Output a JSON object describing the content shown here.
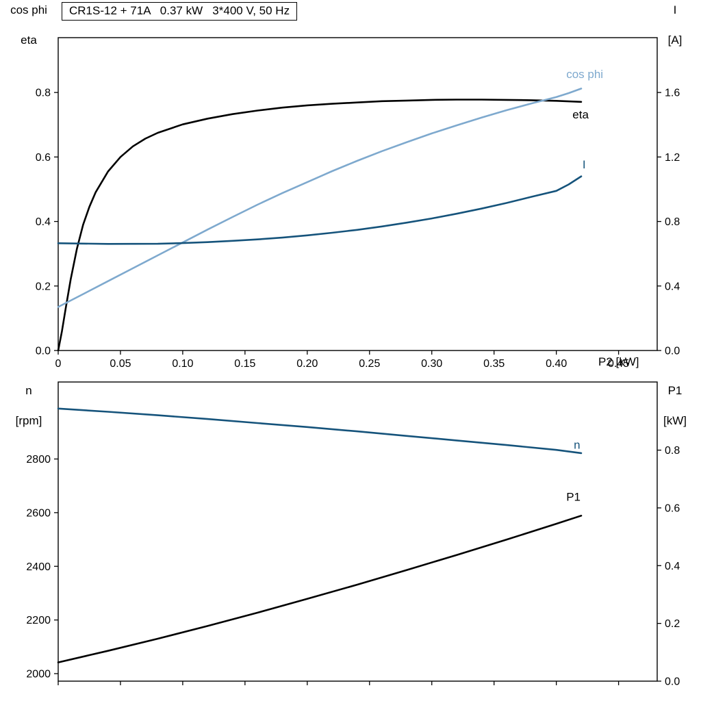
{
  "title_box": {
    "text": "CR1S-12 + 71A   0.37 kW   3*400 V, 50 Hz"
  },
  "colors": {
    "curve_black": "#000000",
    "curve_light_blue": "#7ea9ce",
    "curve_dark_blue": "#15537b",
    "axis": "#000000"
  },
  "chart_data": [
    {
      "name": "motor-curves-top",
      "type": "line",
      "x_label": "P2 [kW]",
      "x_range": [
        0,
        0.481
      ],
      "x_ticks": [
        {
          "v": 0,
          "label": "0"
        },
        {
          "v": 0.05,
          "label": "0.05"
        },
        {
          "v": 0.1,
          "label": "0.10"
        },
        {
          "v": 0.15,
          "label": "0.15"
        },
        {
          "v": 0.2,
          "label": "0.20"
        },
        {
          "v": 0.25,
          "label": "0.25"
        },
        {
          "v": 0.3,
          "label": "0.30"
        },
        {
          "v": 0.35,
          "label": "0.35"
        },
        {
          "v": 0.4,
          "label": "0.40"
        },
        {
          "v": 0.45,
          "label": "0.45"
        }
      ],
      "left_axis": {
        "title_lines": [
          "cos phi",
          "eta"
        ],
        "range": [
          0,
          0.97
        ],
        "ticks": [
          {
            "v": 0,
            "label": "0.0"
          },
          {
            "v": 0.2,
            "label": "0.2"
          },
          {
            "v": 0.4,
            "label": "0.4"
          },
          {
            "v": 0.6,
            "label": "0.6"
          },
          {
            "v": 0.8,
            "label": "0.8"
          }
        ]
      },
      "right_axis": {
        "title_lines": [
          "I",
          "[A]"
        ],
        "range": [
          0,
          1.94
        ],
        "ticks": [
          {
            "v": 0,
            "label": "0.0"
          },
          {
            "v": 0.4,
            "label": "0.4"
          },
          {
            "v": 0.8,
            "label": "0.8"
          },
          {
            "v": 1.2,
            "label": "1.2"
          },
          {
            "v": 1.6,
            "label": "1.6"
          }
        ]
      },
      "series": [
        {
          "name": "eta",
          "label": "eta",
          "axis": "left",
          "color": "#000000",
          "label_at": [
            0.413,
            0.72
          ],
          "points": [
            [
              0,
              0
            ],
            [
              0.003,
              0.06
            ],
            [
              0.006,
              0.13
            ],
            [
              0.01,
              0.22
            ],
            [
              0.015,
              0.315
            ],
            [
              0.02,
              0.39
            ],
            [
              0.025,
              0.445
            ],
            [
              0.03,
              0.49
            ],
            [
              0.04,
              0.555
            ],
            [
              0.05,
              0.6
            ],
            [
              0.06,
              0.633
            ],
            [
              0.07,
              0.657
            ],
            [
              0.08,
              0.675
            ],
            [
              0.1,
              0.701
            ],
            [
              0.12,
              0.719
            ],
            [
              0.14,
              0.733
            ],
            [
              0.16,
              0.744
            ],
            [
              0.18,
              0.753
            ],
            [
              0.2,
              0.76
            ],
            [
              0.22,
              0.765
            ],
            [
              0.24,
              0.769
            ],
            [
              0.26,
              0.773
            ],
            [
              0.28,
              0.775
            ],
            [
              0.3,
              0.777
            ],
            [
              0.32,
              0.778
            ],
            [
              0.34,
              0.778
            ],
            [
              0.36,
              0.777
            ],
            [
              0.38,
              0.776
            ],
            [
              0.4,
              0.774
            ],
            [
              0.42,
              0.771
            ]
          ]
        },
        {
          "name": "cos-phi",
          "label": "cos phi",
          "axis": "left",
          "color": "#7ea9ce",
          "label_at": [
            0.408,
            0.845
          ],
          "points": [
            [
              0,
              0.135
            ],
            [
              0.02,
              0.175
            ],
            [
              0.04,
              0.215
            ],
            [
              0.06,
              0.255
            ],
            [
              0.08,
              0.295
            ],
            [
              0.1,
              0.335
            ],
            [
              0.12,
              0.375
            ],
            [
              0.14,
              0.414
            ],
            [
              0.16,
              0.452
            ],
            [
              0.18,
              0.488
            ],
            [
              0.2,
              0.522
            ],
            [
              0.22,
              0.556
            ],
            [
              0.24,
              0.588
            ],
            [
              0.26,
              0.618
            ],
            [
              0.28,
              0.646
            ],
            [
              0.3,
              0.673
            ],
            [
              0.32,
              0.698
            ],
            [
              0.34,
              0.722
            ],
            [
              0.36,
              0.745
            ],
            [
              0.38,
              0.766
            ],
            [
              0.4,
              0.786
            ],
            [
              0.41,
              0.798
            ],
            [
              0.42,
              0.812
            ]
          ]
        },
        {
          "name": "current",
          "label": "I",
          "axis": "right",
          "color": "#15537b",
          "label_at": [
            0.421,
            1.13
          ],
          "points": [
            [
              0,
              0.665
            ],
            [
              0.04,
              0.661
            ],
            [
              0.08,
              0.662
            ],
            [
              0.1,
              0.666
            ],
            [
              0.12,
              0.672
            ],
            [
              0.14,
              0.68
            ],
            [
              0.16,
              0.689
            ],
            [
              0.18,
              0.7
            ],
            [
              0.2,
              0.714
            ],
            [
              0.22,
              0.73
            ],
            [
              0.24,
              0.748
            ],
            [
              0.26,
              0.769
            ],
            [
              0.28,
              0.793
            ],
            [
              0.3,
              0.819
            ],
            [
              0.32,
              0.848
            ],
            [
              0.34,
              0.88
            ],
            [
              0.36,
              0.915
            ],
            [
              0.38,
              0.953
            ],
            [
              0.4,
              0.99
            ],
            [
              0.41,
              1.03
            ],
            [
              0.42,
              1.08
            ]
          ]
        }
      ]
    },
    {
      "name": "speed-power-bottom",
      "type": "line",
      "x_label": "",
      "x_range": [
        0,
        0.481
      ],
      "x_ticks": [
        {
          "v": 0,
          "label": ""
        },
        {
          "v": 0.05,
          "label": ""
        },
        {
          "v": 0.1,
          "label": ""
        },
        {
          "v": 0.15,
          "label": ""
        },
        {
          "v": 0.2,
          "label": ""
        },
        {
          "v": 0.25,
          "label": ""
        },
        {
          "v": 0.3,
          "label": ""
        },
        {
          "v": 0.35,
          "label": ""
        },
        {
          "v": 0.4,
          "label": ""
        },
        {
          "v": 0.45,
          "label": ""
        }
      ],
      "left_axis": {
        "title_lines": [
          "n",
          "[rpm]"
        ],
        "range": [
          1972,
          3087
        ],
        "ticks": [
          {
            "v": 2000,
            "label": "2000"
          },
          {
            "v": 2200,
            "label": "2200"
          },
          {
            "v": 2400,
            "label": "2400"
          },
          {
            "v": 2600,
            "label": "2600"
          },
          {
            "v": 2800,
            "label": "2800"
          }
        ]
      },
      "right_axis": {
        "title_lines": [
          "P1",
          "[kW]"
        ],
        "range": [
          0,
          1.036
        ],
        "ticks": [
          {
            "v": 0,
            "label": "0.0"
          },
          {
            "v": 0.2,
            "label": "0.2"
          },
          {
            "v": 0.4,
            "label": "0.4"
          },
          {
            "v": 0.6,
            "label": "0.6"
          },
          {
            "v": 0.8,
            "label": "0.8"
          }
        ]
      },
      "series": [
        {
          "name": "speed",
          "label": "n",
          "axis": "left",
          "color": "#15537b",
          "label_at": [
            0.414,
            2838
          ],
          "points": [
            [
              0,
              2988
            ],
            [
              0.04,
              2976
            ],
            [
              0.08,
              2963
            ],
            [
              0.12,
              2949
            ],
            [
              0.16,
              2934
            ],
            [
              0.2,
              2919
            ],
            [
              0.24,
              2903
            ],
            [
              0.28,
              2886
            ],
            [
              0.32,
              2869
            ],
            [
              0.36,
              2852
            ],
            [
              0.4,
              2834
            ],
            [
              0.42,
              2822
            ]
          ]
        },
        {
          "name": "p1",
          "label": "P1",
          "axis": "right",
          "color": "#000000",
          "label_at": [
            0.408,
            0.625
          ],
          "points": [
            [
              0,
              0.065
            ],
            [
              0.04,
              0.105
            ],
            [
              0.08,
              0.147
            ],
            [
              0.12,
              0.191
            ],
            [
              0.16,
              0.237
            ],
            [
              0.2,
              0.285
            ],
            [
              0.24,
              0.334
            ],
            [
              0.28,
              0.385
            ],
            [
              0.32,
              0.437
            ],
            [
              0.36,
              0.49
            ],
            [
              0.4,
              0.545
            ],
            [
              0.42,
              0.573
            ]
          ]
        }
      ]
    }
  ]
}
